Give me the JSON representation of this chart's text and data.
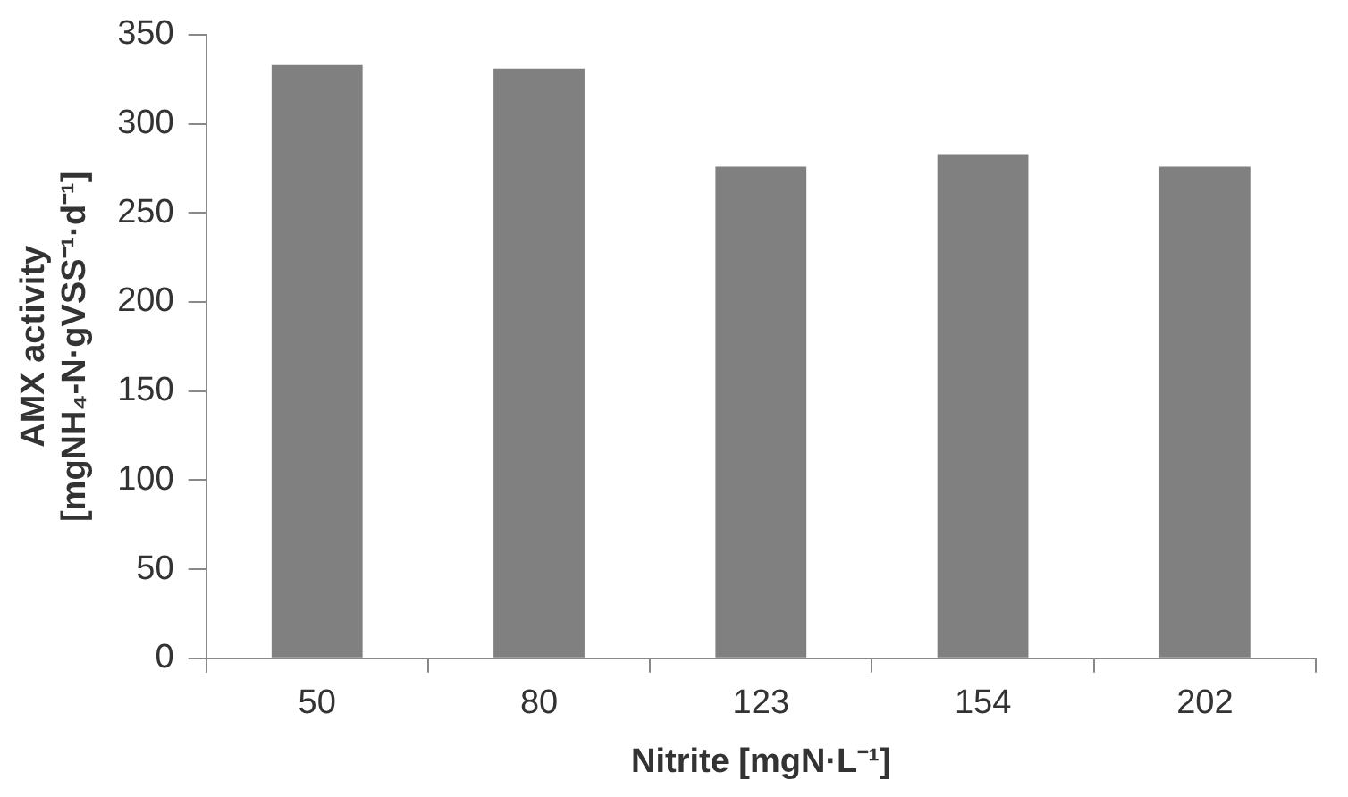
{
  "chart_data": {
    "type": "bar",
    "xlabel": "Nitrite [mgN·L⁻¹]",
    "ylabel": "AMX activity\n[mgNH₄-N·gVSS⁻¹·d⁻¹]",
    "categories": [
      "50",
      "80",
      "123",
      "154",
      "202"
    ],
    "values": [
      333,
      331,
      276,
      283,
      276
    ],
    "color": "#808080",
    "ylim": [
      0,
      350
    ],
    "yticks": [
      0,
      50,
      100,
      150,
      200,
      250,
      300,
      350
    ],
    "grid": false
  }
}
